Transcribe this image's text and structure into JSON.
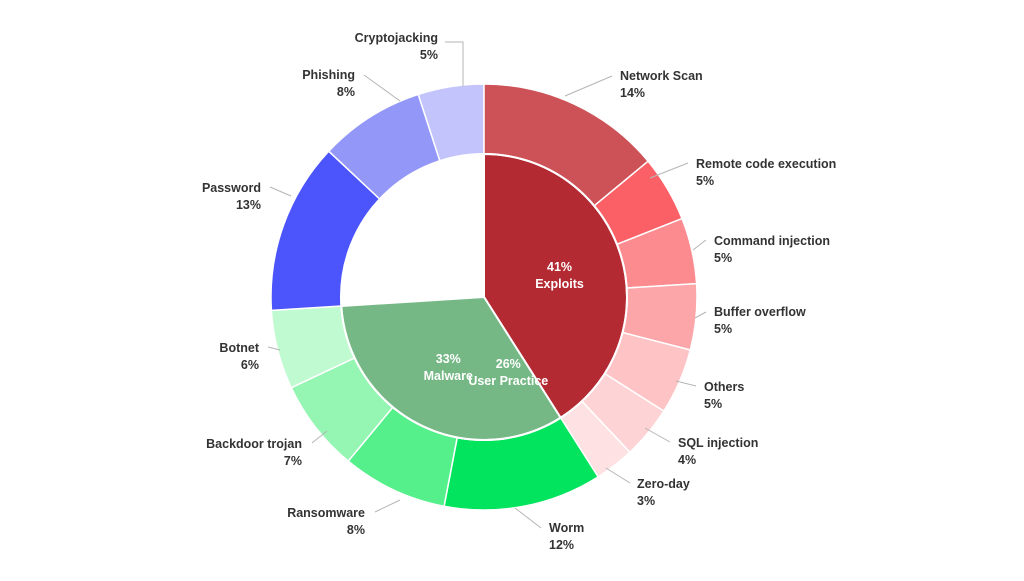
{
  "chart_data": {
    "type": "sunburst",
    "title": "",
    "inner": [
      {
        "name": "User Practice",
        "value": 26,
        "label": "26%",
        "color": "#3f47c2"
      },
      {
        "name": "Exploits",
        "value": 41,
        "label": "41%",
        "color": "#b32a33"
      },
      {
        "name": "Malware",
        "value": 33,
        "label": "33%",
        "color": "#76b885"
      }
    ],
    "outer": [
      {
        "name": "Cryptojacking",
        "value": 5,
        "label": "5%",
        "parent": "User Practice",
        "color": "#c3c4fb"
      },
      {
        "name": "Network Scan",
        "value": 14,
        "label": "14%",
        "parent": "Exploits",
        "color": "#cd5257"
      },
      {
        "name": "Remote code execution",
        "value": 5,
        "label": "5%",
        "parent": "Exploits",
        "color": "#fa6066"
      },
      {
        "name": "Command injection",
        "value": 5,
        "label": "5%",
        "parent": "Exploits",
        "color": "#fb8b8f"
      },
      {
        "name": "Buffer overflow",
        "value": 5,
        "label": "5%",
        "parent": "Exploits",
        "color": "#fca6a9"
      },
      {
        "name": "Others",
        "value": 5,
        "label": "5%",
        "parent": "Exploits",
        "color": "#fdc3c5"
      },
      {
        "name": "SQL injection",
        "value": 4,
        "label": "4%",
        "parent": "Exploits",
        "color": "#fdd3d5"
      },
      {
        "name": "Zero-day",
        "value": 3,
        "label": "3%",
        "parent": "Exploits",
        "color": "#fee1e2"
      },
      {
        "name": "Worm",
        "value": 12,
        "label": "12%",
        "parent": "Malware",
        "color": "#02e45e"
      },
      {
        "name": "Ransomware",
        "value": 8,
        "label": "8%",
        "parent": "Malware",
        "color": "#55ef8b"
      },
      {
        "name": "Backdoor trojan",
        "value": 7,
        "label": "7%",
        "parent": "Malware",
        "color": "#95f5b2"
      },
      {
        "name": "Botnet",
        "value": 6,
        "label": "6%",
        "parent": "Malware",
        "color": "#c0fad0"
      },
      {
        "name": "Password",
        "value": 13,
        "label": "13%",
        "parent": "User Practice",
        "color": "#4b55fb"
      },
      {
        "name": "Phishing",
        "value": 8,
        "label": "8%",
        "parent": "User Practice",
        "color": "#9398f8"
      }
    ]
  }
}
